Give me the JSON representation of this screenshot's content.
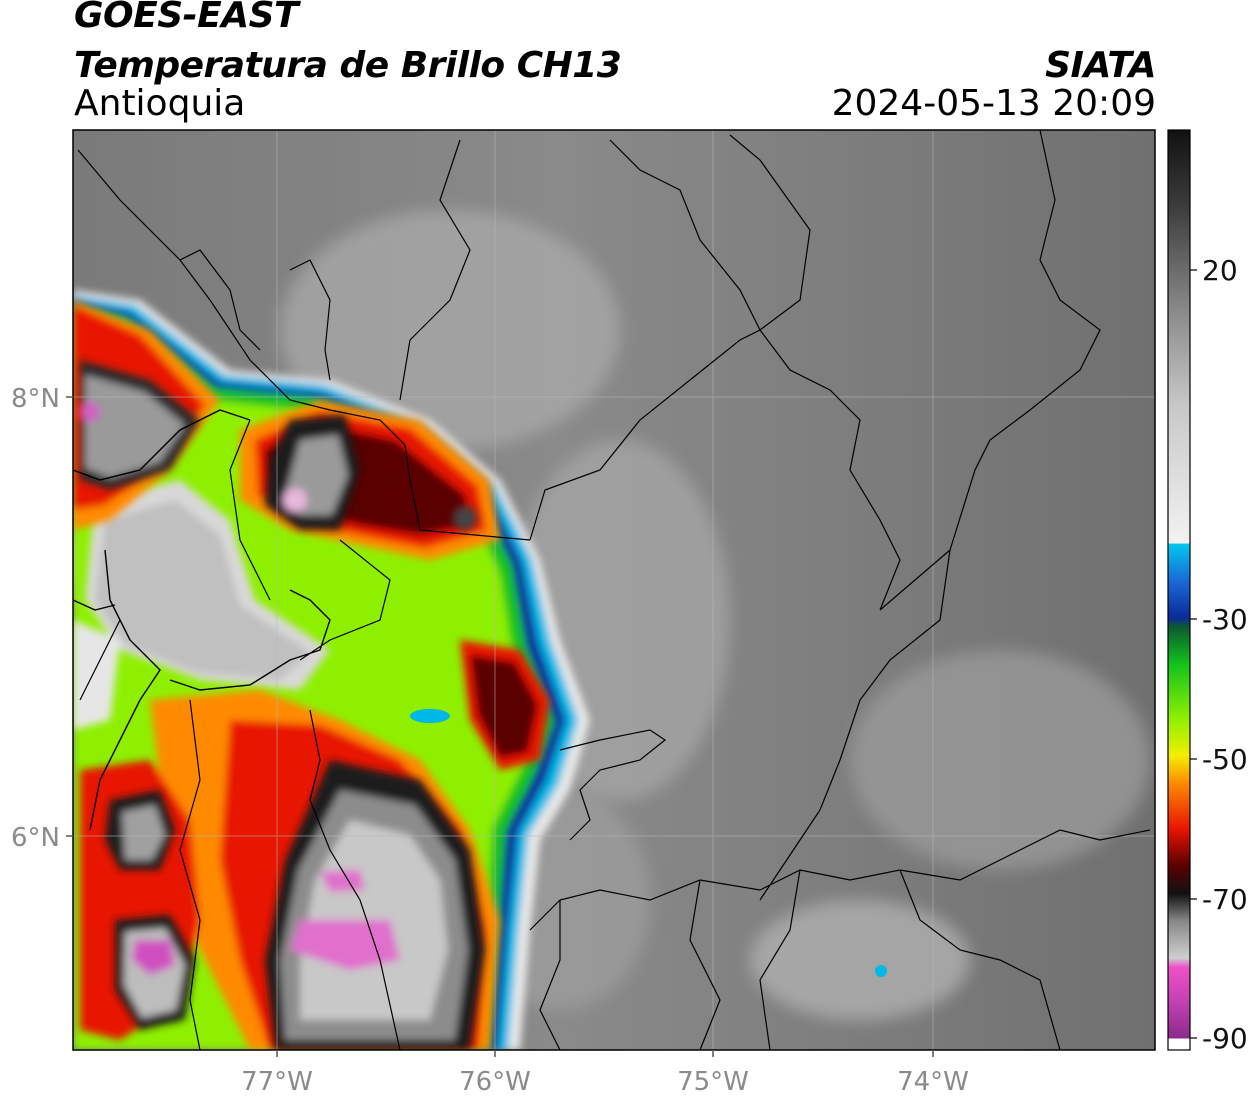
{
  "header": {
    "satellite": "GOES-EAST",
    "product": "Temperatura de Brillo CH13",
    "agency": "SIATA",
    "region": "Antioquia",
    "datetime": "2024-05-13 20:09"
  },
  "axes": {
    "lat_labels": [
      "8°N",
      "6°N"
    ],
    "lon_labels": [
      "77°W",
      "76°W",
      "75°W",
      "74°W"
    ]
  },
  "colorbar": {
    "tick_labels": [
      "20",
      "-30",
      "-50",
      "-70",
      "-90"
    ],
    "colors": {
      "black": "#111111",
      "gray_mid": "#8c8c8c",
      "white": "#f2f2f2",
      "cyan": "#00c8ee",
      "blue": "#0a2a9a",
      "green": "#12c21c",
      "lime": "#8ef000",
      "yellow": "#f4ee00",
      "orange": "#ff8a00",
      "red": "#e81400",
      "dark_red": "#5a0000",
      "light_gray": "#cfcfcf",
      "pink": "#f050c8",
      "magenta": "#8c2a8c"
    }
  }
}
